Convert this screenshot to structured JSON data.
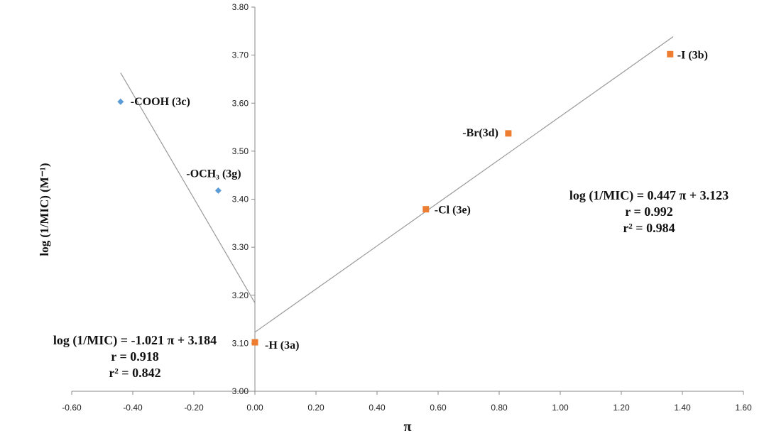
{
  "chart_data": {
    "type": "scatter",
    "xlabel": "π",
    "ylabel": "log (1/MIC) (M⁻¹)",
    "xlim": [
      -0.6,
      1.6
    ],
    "ylim": [
      3.0,
      3.8
    ],
    "x_ticks": [
      "-0.60",
      "-0.40",
      "-0.20",
      "0.00",
      "0.20",
      "0.40",
      "0.60",
      "0.80",
      "1.00",
      "1.20",
      "1.40",
      "1.60"
    ],
    "y_ticks": [
      "3.00",
      "3.10",
      "3.20",
      "3.30",
      "3.40",
      "3.50",
      "3.60",
      "3.70",
      "3.80"
    ],
    "grid": false,
    "series": [
      {
        "marker": "diamond",
        "color": "#5b9bd5",
        "points": [
          {
            "x": -0.44,
            "y": 3.603,
            "label": "-COOH (3c)"
          },
          {
            "x": -0.12,
            "y": 3.418,
            "label": "-OCH₃ (3g)"
          }
        ],
        "trendline": {
          "slope": -1.021,
          "intercept": 3.184,
          "x_range": [
            -0.44,
            0.0
          ]
        },
        "equation": [
          "log (1/MIC) = -1.021 π + 3.184",
          "r = 0.918",
          "r² = 0.842"
        ]
      },
      {
        "marker": "square",
        "color": "#ed7d31",
        "points": [
          {
            "x": 0.0,
            "y": 3.102,
            "label": "-H (3a)"
          },
          {
            "x": 0.56,
            "y": 3.379,
            "label": "-Cl (3e)"
          },
          {
            "x": 0.83,
            "y": 3.537,
            "label": "-Br(3d)"
          },
          {
            "x": 1.36,
            "y": 3.702,
            "label": "-I (3b)"
          }
        ],
        "trendline": {
          "slope": 0.447,
          "intercept": 3.123,
          "x_range": [
            0.0,
            1.36
          ]
        },
        "equation": [
          "log (1/MIC) = 0.447 π + 3.123",
          "r = 0.992",
          "r² = 0.984"
        ]
      }
    ]
  }
}
